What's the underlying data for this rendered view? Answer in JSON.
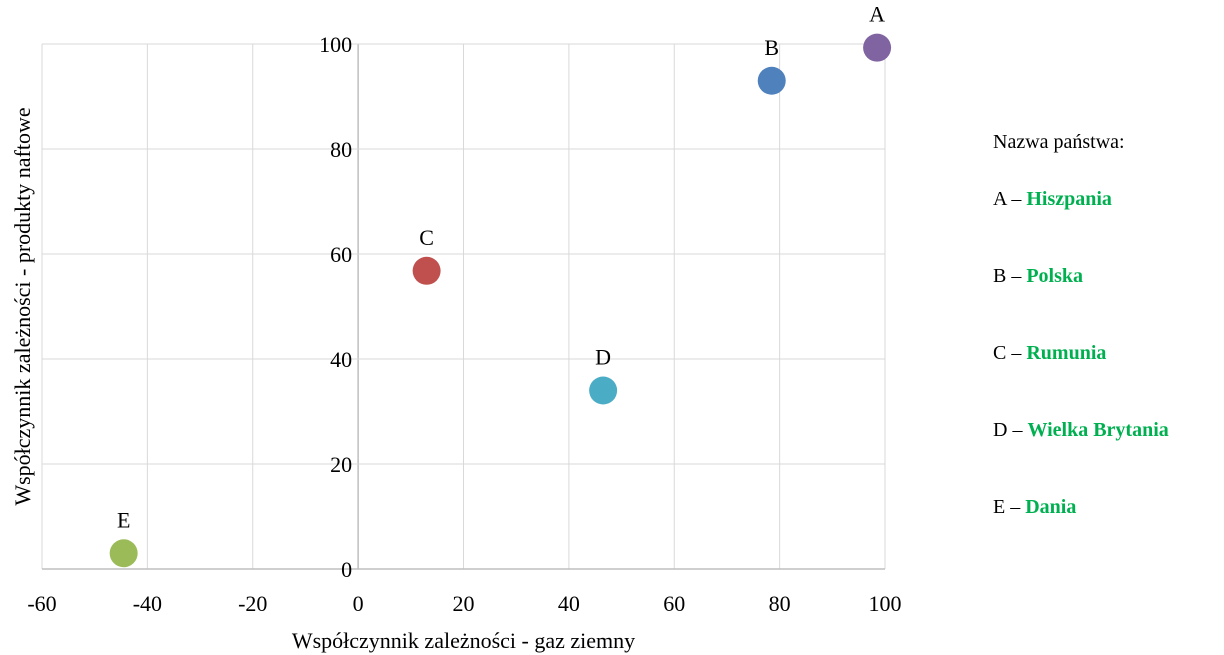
{
  "chart_data": {
    "type": "scatter",
    "xlabel": "Współczynnik zależności - gaz ziemny",
    "ylabel": "Współczynnik zależności - produkty naftowe",
    "xlim": [
      -60,
      100
    ],
    "ylim": [
      0,
      100
    ],
    "xticks": [
      -60,
      -40,
      -20,
      0,
      20,
      40,
      60,
      80,
      100
    ],
    "yticks": [
      0,
      20,
      40,
      60,
      80,
      100
    ],
    "grid": true,
    "points": [
      {
        "label": "A",
        "x": 98.5,
        "y": 99.3,
        "color": "#8064a2"
      },
      {
        "label": "B",
        "x": 78.5,
        "y": 93,
        "color": "#4f81bd"
      },
      {
        "label": "C",
        "x": 13,
        "y": 56.8,
        "color": "#c0504d"
      },
      {
        "label": "D",
        "x": 46.5,
        "y": 34,
        "color": "#4bacc6"
      },
      {
        "label": "E",
        "x": -44.5,
        "y": 3,
        "color": "#9bbb59"
      }
    ],
    "legend": {
      "title": "Nazwa państwa:",
      "separator": "–",
      "name_color": "#00b050",
      "items": [
        {
          "key": "A",
          "name": "Hiszpania"
        },
        {
          "key": "B",
          "name": "Polska"
        },
        {
          "key": "C",
          "name": "Rumunia"
        },
        {
          "key": "D",
          "name": "Wielka Brytania"
        },
        {
          "key": "E",
          "name": "Dania"
        }
      ]
    }
  }
}
